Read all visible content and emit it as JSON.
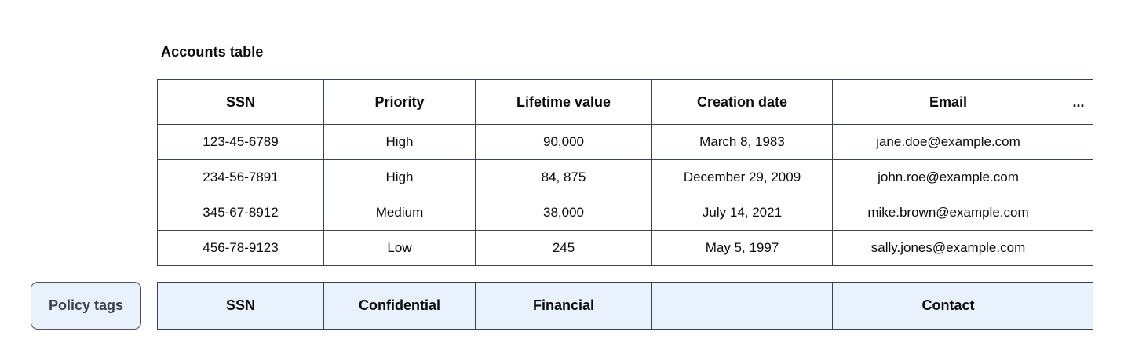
{
  "title": "Accounts table",
  "policy_chip": {
    "label": "Policy tags"
  },
  "table": {
    "columns": [
      "SSN",
      "Priority",
      "Lifetime value",
      "Creation date",
      "Email",
      "..."
    ],
    "column_names": [
      "ssn",
      "priority",
      "lifetime-value",
      "creation-date",
      "email",
      "more"
    ],
    "rows": [
      [
        "123-45-6789",
        "High",
        "90,000",
        "March 8, 1983",
        "jane.doe@example.com",
        ""
      ],
      [
        "234-56-7891",
        "High",
        "84, 875",
        "December 29, 2009",
        "john.roe@example.com",
        ""
      ],
      [
        "345-67-8912",
        "Medium",
        "38,000",
        "July 14, 2021",
        "mike.brown@example.com",
        ""
      ],
      [
        "456-78-9123",
        "Low",
        "245",
        "May 5, 1997",
        "sally.jones@example.com",
        ""
      ]
    ]
  },
  "policy_row": {
    "cells": [
      "SSN",
      "Confidential",
      "Financial",
      "",
      "Contact",
      ""
    ]
  },
  "colors": {
    "table_border": "#3b4351",
    "policy_row_background": "#e9f1fd",
    "chip_border": "#4b525c",
    "chip_text": "#3a414b"
  }
}
